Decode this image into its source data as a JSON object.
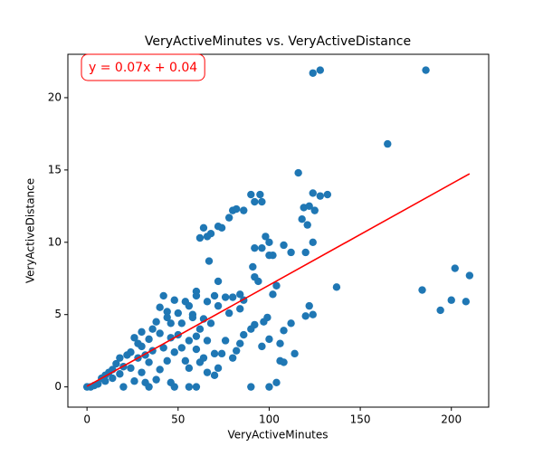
{
  "chart_data": {
    "type": "scatter",
    "title": "VeryActiveMinutes vs. VeryActiveDistance",
    "x_label": "VeryActiveMinutes",
    "y_label": "VeryActiveDistance",
    "annotation": "y = 0.07x + 0.04",
    "xlim": [
      -10.5,
      220.5
    ],
    "ylim": [
      -1.4,
      23
    ],
    "xticks": [
      0,
      50,
      100,
      150,
      200
    ],
    "yticks": [
      0,
      5,
      10,
      15,
      20
    ],
    "grid": false,
    "series": [
      {
        "color": "#1f77b4",
        "x": [
          124,
          128,
          186,
          165,
          116,
          184,
          194,
          200,
          202,
          208,
          210,
          137,
          124,
          128,
          132,
          119,
          122,
          125,
          118,
          121,
          124,
          120,
          112,
          108,
          104,
          102,
          122,
          124,
          120,
          112,
          108,
          106,
          106,
          108,
          114,
          104,
          100,
          90,
          99,
          97,
          100,
          96,
          92,
          90,
          95,
          96,
          98,
          100,
          96,
          92,
          100,
          102,
          91,
          92,
          94,
          92,
          90,
          86,
          84,
          82,
          76,
          74,
          80,
          82,
          86,
          78,
          72,
          74,
          64,
          68,
          66,
          62,
          67,
          72,
          70,
          76,
          80,
          84,
          86,
          84,
          78,
          72,
          66,
          60,
          60,
          56,
          54,
          58,
          64,
          68,
          62,
          60,
          56,
          66,
          70,
          72,
          66,
          60,
          56,
          48,
          46,
          54,
          56,
          62,
          60,
          52,
          50,
          46,
          44,
          40,
          42,
          48,
          50,
          38,
          40,
          42,
          44,
          40,
          38,
          34,
          32,
          34,
          36,
          34,
          30,
          30,
          28,
          30,
          26,
          24,
          22,
          20,
          18,
          16,
          14,
          12,
          10,
          8,
          6,
          4,
          2,
          0,
          20,
          24,
          28,
          36,
          46,
          52,
          58,
          26,
          32,
          18,
          14,
          10,
          44,
          48,
          64,
          70,
          80
        ],
        "values": [
          21.7,
          21.9,
          21.9,
          16.8,
          14.8,
          6.7,
          5.3,
          6.0,
          8.2,
          5.9,
          7.7,
          6.9,
          13.4,
          13.2,
          13.3,
          12.4,
          12.5,
          12.2,
          11.6,
          11.2,
          10.0,
          9.3,
          9.3,
          9.8,
          7.0,
          6.4,
          5.6,
          5.0,
          4.9,
          4.4,
          3.9,
          3.0,
          1.8,
          1.7,
          2.3,
          0.3,
          0,
          0,
          4.8,
          4.5,
          3.3,
          2.8,
          12.8,
          13.3,
          13.3,
          12.8,
          10.4,
          10.0,
          9.6,
          9.6,
          9.1,
          9.1,
          8.3,
          7.6,
          7.3,
          4.3,
          4.0,
          3.6,
          3.0,
          2.5,
          3.2,
          2.3,
          12.2,
          12.3,
          12.2,
          11.7,
          11.1,
          11.0,
          11.0,
          10.6,
          10.4,
          10.3,
          8.7,
          7.3,
          6.3,
          6.2,
          6.2,
          6.4,
          6.0,
          5.4,
          5.1,
          5.6,
          5.9,
          6.6,
          6.3,
          5.6,
          5.9,
          5.0,
          4.7,
          4.4,
          4.0,
          3.5,
          3.2,
          3.2,
          2.3,
          1.3,
          1.0,
          0,
          0,
          0,
          0.3,
          1.8,
          1.3,
          1.7,
          2.6,
          2.7,
          3.6,
          4.4,
          5.2,
          5.5,
          6.3,
          6.0,
          5.1,
          4.5,
          3.7,
          2.7,
          1.8,
          1.2,
          0.5,
          0,
          0.3,
          1.7,
          2.5,
          3.3,
          3.8,
          2.8,
          2.0,
          1.0,
          0.4,
          1.3,
          2.2,
          1.4,
          0.9,
          1.6,
          0.6,
          1.0,
          0.4,
          0.6,
          0.2,
          0.1,
          0,
          0,
          0,
          2.4,
          3.0,
          4.0,
          3.4,
          4.4,
          4.8,
          3.4,
          2.2,
          2.0,
          1.2,
          0.8,
          4.8,
          2.4,
          2.0,
          0.8,
          2.0
        ]
      }
    ],
    "fit_line": {
      "color": "#ff0000",
      "x": [
        0,
        210
      ],
      "values": [
        0.04,
        14.74
      ]
    }
  }
}
